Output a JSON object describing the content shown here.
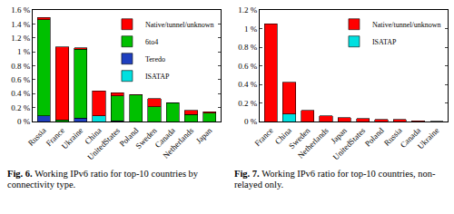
{
  "chart_data": [
    {
      "type": "bar",
      "stacked": true,
      "legend": "upper right",
      "grid": false,
      "title": "Fig. 6. Working IPv6 ratio for top-10 countries by connectivity type.",
      "categories": [
        "Russia",
        "France",
        "Ukraine",
        "China",
        "UnitedStates",
        "Poland",
        "Sweden",
        "Canada",
        "Netherlands",
        "Japan"
      ],
      "series": [
        {
          "name": "Native/tunnel/unknown",
          "color": "#ff0000",
          "values": [
            0.03,
            1.05,
            0.02,
            0.36,
            0.04,
            0.01,
            0.12,
            0.0,
            0.06,
            0.02
          ]
        },
        {
          "name": "6to4",
          "color": "#00c000",
          "values": [
            1.38,
            0.02,
            0.99,
            0.0,
            0.36,
            0.38,
            0.21,
            0.27,
            0.1,
            0.12
          ]
        },
        {
          "name": "Teredo",
          "color": "#1f3fbf",
          "values": [
            0.08,
            0.0,
            0.05,
            0.0,
            0.01,
            0.0,
            0.0,
            0.0,
            0.0,
            0.0
          ]
        },
        {
          "name": "ISATAP",
          "color": "#00e0e0",
          "values": [
            0.0,
            0.0,
            0.0,
            0.08,
            0.0,
            0.0,
            0.0,
            0.0,
            0.0,
            0.0
          ]
        }
      ],
      "ylim": [
        0,
        1.6
      ],
      "yticks": [
        {
          "value": 0,
          "label": "0 %"
        },
        {
          "value": 0.2,
          "label": "0.2 %"
        },
        {
          "value": 0.4,
          "label": "0.4 %"
        },
        {
          "value": 0.6,
          "label": "0.6 %"
        },
        {
          "value": 0.8,
          "label": "0.8 %"
        },
        {
          "value": 1,
          "label": "1 %"
        },
        {
          "value": 1.2,
          "label": "1.2 %"
        },
        {
          "value": 1.4,
          "label": "1.4 %"
        },
        {
          "value": 1.6,
          "label": "1.6 %"
        }
      ]
    },
    {
      "type": "bar",
      "stacked": true,
      "legend": "upper right",
      "grid": false,
      "title": "Fig. 7. Working IPv6 ratio for top-10 countries, non-relayed only.",
      "categories": [
        "France",
        "China",
        "Sweden",
        "Netherlands",
        "Japan",
        "UnitedStates",
        "Poland",
        "Russia",
        "Canada",
        "Ukraine"
      ],
      "series": [
        {
          "name": "Native/tunnel/unknown",
          "color": "#ff0000",
          "values": [
            1.05,
            0.34,
            0.12,
            0.06,
            0.04,
            0.03,
            0.02,
            0.02,
            0.005,
            0.003
          ]
        },
        {
          "name": "ISATAP",
          "color": "#00e0e0",
          "values": [
            0.0,
            0.08,
            0.0,
            0.0,
            0.0,
            0.0,
            0.0,
            0.0,
            0.0,
            0.0
          ]
        }
      ],
      "ylim": [
        0,
        1.2
      ],
      "yticks": [
        {
          "value": 0,
          "label": "0 %"
        },
        {
          "value": 0.2,
          "label": "0.2 %"
        },
        {
          "value": 0.4,
          "label": "0.4 %"
        },
        {
          "value": 0.6,
          "label": "0.6 %"
        },
        {
          "value": 0.8,
          "label": "0.8 %"
        },
        {
          "value": 1,
          "label": "1 %"
        },
        {
          "value": 1.2,
          "label": "1.2 %"
        }
      ]
    }
  ]
}
